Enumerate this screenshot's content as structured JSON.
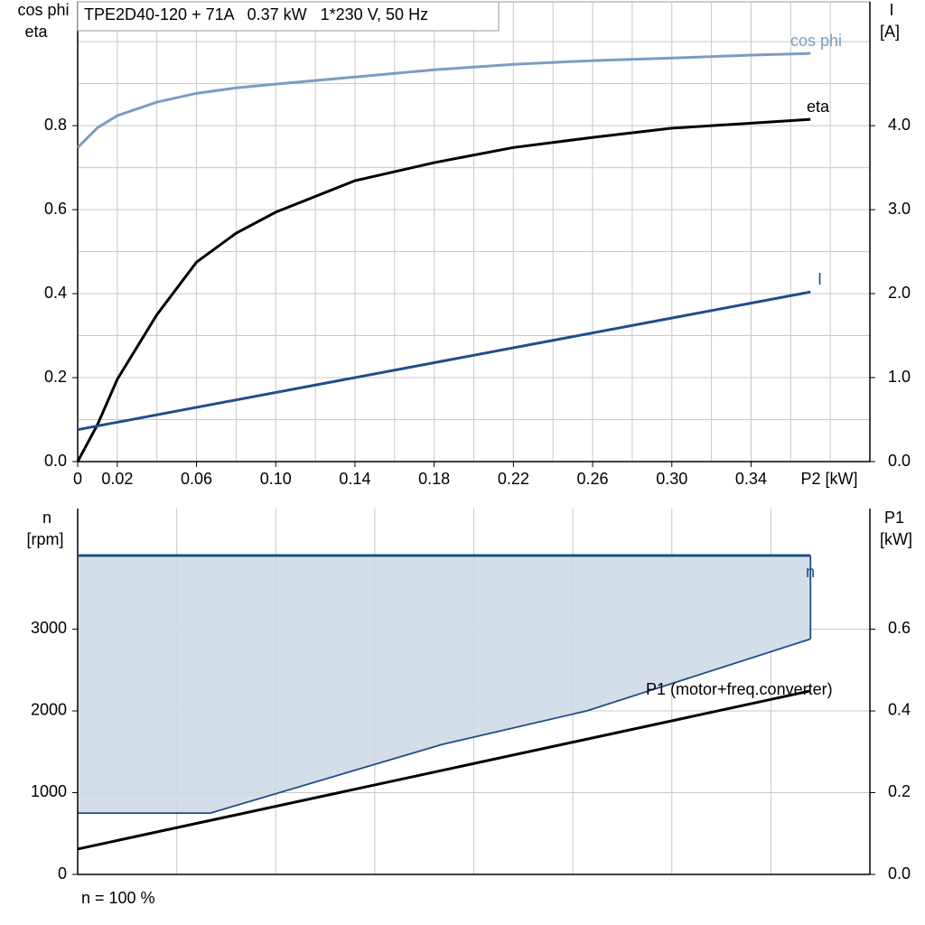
{
  "chart_data": [
    {
      "type": "line",
      "title": "TPE2D40-120 + 71A   0.37 kW   1*230 V, 50 Hz",
      "x_label": "P2 [kW]",
      "y_label": [
        "cos phi",
        "eta"
      ],
      "y2_label": [
        "I",
        "[A]"
      ],
      "xlim": [
        0,
        0.4
      ],
      "xticks": [
        0,
        0.02,
        0.06,
        {
          "value": 0.1,
          "label": "0.10"
        },
        0.14,
        0.18,
        0.22,
        0.26,
        {
          "value": 0.3,
          "label": "0.30"
        },
        0.34
      ],
      "x_grid": [
        0.02,
        0.04,
        0.06,
        0.08,
        0.1,
        0.12,
        0.14,
        0.16,
        0.18,
        0.2,
        0.22,
        0.24,
        0.26,
        0.28,
        0.3,
        0.32,
        0.34,
        0.36,
        0.38
      ],
      "ylim": [
        0,
        1.095
      ],
      "yticks": [
        {
          "value": 0,
          "label": "0.0"
        },
        0.2,
        0.4,
        0.6,
        0.8
      ],
      "y_grid": [
        0.1,
        0.2,
        0.3,
        0.4,
        0.5,
        0.6,
        0.7,
        0.8,
        0.9,
        1.0
      ],
      "y2lim": [
        0,
        5.475
      ],
      "y2ticks": [
        {
          "value": 0,
          "label": "0.0"
        },
        {
          "value": 1,
          "label": "1.0"
        },
        {
          "value": 2,
          "label": "2.0"
        },
        {
          "value": 3,
          "label": "3.0"
        },
        {
          "value": 4,
          "label": "4.0"
        }
      ],
      "grid": true,
      "series": [
        {
          "name": "cos phi",
          "color": "#7b9dc2",
          "x": [
            0,
            0.01,
            0.02,
            0.04,
            0.06,
            0.08,
            0.1,
            0.14,
            0.18,
            0.22,
            0.26,
            0.3,
            0.34,
            0.37
          ],
          "values": [
            0.748,
            0.795,
            0.824,
            0.856,
            0.877,
            0.89,
            0.899,
            0.916,
            0.933,
            0.946,
            0.955,
            0.961,
            0.968,
            0.972
          ]
        },
        {
          "name": "eta",
          "color": "#000000",
          "x": [
            0,
            0.01,
            0.02,
            0.04,
            0.06,
            0.08,
            0.1,
            0.14,
            0.18,
            0.22,
            0.26,
            0.3,
            0.34,
            0.37
          ],
          "values": [
            0,
            0.088,
            0.196,
            0.35,
            0.475,
            0.544,
            0.594,
            0.669,
            0.712,
            0.748,
            0.772,
            0.794,
            0.806,
            0.815
          ]
        },
        {
          "name": "I",
          "color": "#1f4e89",
          "axis": "y2",
          "x": [
            0,
            0.37
          ],
          "values": [
            0.38,
            2.02
          ]
        }
      ]
    },
    {
      "type": "line",
      "y_label": [
        "n",
        "[rpm]"
      ],
      "y2_label": [
        "P1",
        "[kW]"
      ],
      "xlim": [
        0,
        0.4
      ],
      "x_grid": [
        0.05,
        0.1,
        0.15,
        0.2,
        0.25,
        0.3,
        0.35
      ],
      "ylim": [
        0,
        4475
      ],
      "yticks": [
        0,
        1000,
        2000,
        3000
      ],
      "y2lim": [
        0,
        0.895
      ],
      "y2ticks": [
        {
          "value": 0,
          "label": "0.0"
        },
        0.2,
        0.4,
        0.6
      ],
      "grid": true,
      "area": {
        "color": "#cfdae6",
        "edge_color": "#1f4e89",
        "x": [
          0,
          0.067,
          0.184,
          0.257,
          0.37
        ],
        "values": [
          750,
          750,
          1590,
          2000,
          2880
        ]
      },
      "series": [
        {
          "name": "n",
          "color": "#1f4e89",
          "x": [
            0,
            0.37
          ],
          "values": [
            3900,
            3900
          ]
        },
        {
          "name": "P1 (motor+freq.converter)",
          "color": "#000000",
          "axis": "y2",
          "x": [
            0,
            0.37
          ],
          "values": [
            0.062,
            0.449
          ]
        }
      ],
      "note": "n = 100 %"
    }
  ]
}
